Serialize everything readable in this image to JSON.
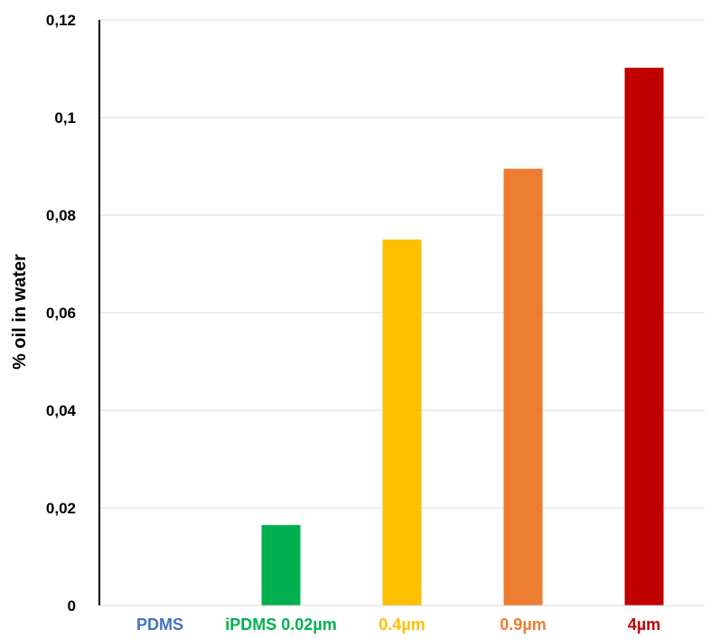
{
  "chart_data": {
    "type": "bar",
    "title": "",
    "xlabel": "",
    "ylabel": "% oil in water",
    "ylim": [
      0,
      0.12
    ],
    "yticks": [
      0,
      0.02,
      0.04,
      0.06,
      0.08,
      0.1,
      0.12
    ],
    "ytick_labels": [
      "0",
      "0,02",
      "0,04",
      "0,06",
      "0,08",
      "0,1",
      "0,12"
    ],
    "grid": true,
    "legend": "none",
    "categories": [
      "PDMS",
      "iPDMS 0.02µm",
      "0.4µm",
      "0.9µm",
      "4µm"
    ],
    "values": [
      0,
      0.0165,
      0.075,
      0.0895,
      0.1102
    ],
    "colors": [
      "#4472C4",
      "#00B050",
      "#FFC000",
      "#ED7D31",
      "#C00000"
    ]
  }
}
